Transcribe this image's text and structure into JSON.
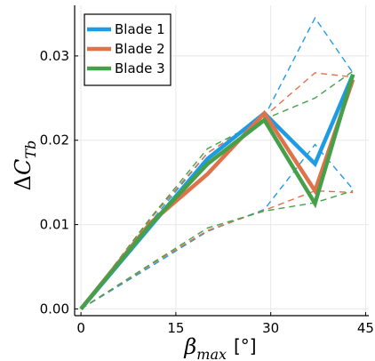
{
  "chart_data": {
    "type": "line",
    "xlabel": {
      "symbol": "β",
      "subscript": "max",
      "unit": "[°]"
    },
    "ylabel": {
      "prefix": "Δ",
      "symbol": "C",
      "subscript": "Tb"
    },
    "xlim": [
      -1,
      45.5
    ],
    "ylim": [
      -0.0008,
      0.036
    ],
    "xticks": [
      0,
      15,
      30,
      45
    ],
    "xtick_labels": [
      "0",
      "15",
      "30",
      "45"
    ],
    "yticks": [
      0.0,
      0.01,
      0.02,
      0.03
    ],
    "ytick_labels": [
      "0.00",
      "0.01",
      "0.02",
      "0.03"
    ],
    "grid": true,
    "legend_position": "top-left",
    "series": [
      {
        "name": "Blade 1",
        "color": "#1f9be6",
        "x": [
          0,
          11,
          20,
          29,
          37,
          43
        ],
        "y": [
          0.0,
          0.0098,
          0.0178,
          0.0232,
          0.0172,
          0.0278
        ],
        "upper": [
          0.0,
          0.0103,
          0.0185,
          0.0228,
          0.0345,
          0.028
        ],
        "lower": [
          0.0,
          0.005,
          0.0092,
          0.0118,
          0.0195,
          0.0142
        ]
      },
      {
        "name": "Blade 2",
        "color": "#e0724b",
        "x": [
          0,
          11,
          20,
          29,
          37,
          43
        ],
        "y": [
          0.0,
          0.0102,
          0.016,
          0.0232,
          0.014,
          0.0272
        ],
        "upper": [
          0.0,
          0.0107,
          0.0185,
          0.0228,
          0.028,
          0.0275
        ],
        "lower": [
          0.0,
          0.0052,
          0.0093,
          0.0117,
          0.014,
          0.0138
        ]
      },
      {
        "name": "Blade 3",
        "color": "#46a049",
        "x": [
          0,
          11,
          20,
          29,
          37,
          43
        ],
        "y": [
          0.0,
          0.01,
          0.0172,
          0.0224,
          0.0125,
          0.0278
        ],
        "upper": [
          0.0,
          0.0108,
          0.019,
          0.0225,
          0.025,
          0.0282
        ],
        "lower": [
          0.0,
          0.0053,
          0.0096,
          0.0116,
          0.0126,
          0.014
        ]
      }
    ]
  }
}
